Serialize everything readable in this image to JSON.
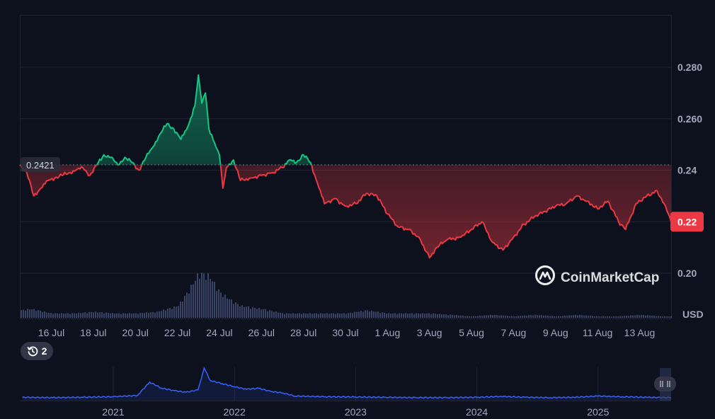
{
  "chart_data": {
    "type": "line",
    "currency_label": "USD",
    "reference_price": 0.2421,
    "reference_label": "0.2421",
    "current_price_label": "0.22",
    "ylim": [
      0.192,
      0.292
    ],
    "y_ticks": [
      {
        "value": 0.28,
        "label": "0.280"
      },
      {
        "value": 0.26,
        "label": "0.260"
      },
      {
        "value": 0.24,
        "label": "0.24"
      },
      {
        "value": 0.22,
        "label": "0.22"
      },
      {
        "value": 0.2,
        "label": "0.20"
      }
    ],
    "x_range": [
      "2025-07-14T12:00",
      "2025-08-14T12:00"
    ],
    "x_ticks": [
      {
        "date": "2025-07-16",
        "label": "16 Jul"
      },
      {
        "date": "2025-07-18",
        "label": "18 Jul"
      },
      {
        "date": "2025-07-20",
        "label": "20 Jul"
      },
      {
        "date": "2025-07-22",
        "label": "22 Jul"
      },
      {
        "date": "2025-07-24",
        "label": "24 Jul"
      },
      {
        "date": "2025-07-26",
        "label": "26 Jul"
      },
      {
        "date": "2025-07-28",
        "label": "28 Jul"
      },
      {
        "date": "2025-07-30",
        "label": "30 Jul"
      },
      {
        "date": "2025-08-01",
        "label": "1 Aug"
      },
      {
        "date": "2025-08-03",
        "label": "3 Aug"
      },
      {
        "date": "2025-08-05",
        "label": "5 Aug"
      },
      {
        "date": "2025-08-07",
        "label": "7 Aug"
      },
      {
        "date": "2025-08-09",
        "label": "9 Aug"
      },
      {
        "date": "2025-08-11",
        "label": "11 Aug"
      },
      {
        "date": "2025-08-13",
        "label": "13 Aug"
      }
    ],
    "price_series": {
      "name": "",
      "points": [
        [
          "2025-07-14T12:00",
          0.2421
        ],
        [
          "2025-07-14T20:00",
          0.239
        ],
        [
          "2025-07-15T04:00",
          0.23
        ],
        [
          "2025-07-15T12:00",
          0.233
        ],
        [
          "2025-07-15T20:00",
          0.236
        ],
        [
          "2025-07-16T04:00",
          0.237
        ],
        [
          "2025-07-16T12:00",
          0.238
        ],
        [
          "2025-07-16T20:00",
          0.239
        ],
        [
          "2025-07-17T04:00",
          0.24
        ],
        [
          "2025-07-17T12:00",
          0.241
        ],
        [
          "2025-07-17T20:00",
          0.238
        ],
        [
          "2025-07-18T04:00",
          0.242
        ],
        [
          "2025-07-18T12:00",
          0.246
        ],
        [
          "2025-07-18T20:00",
          0.245
        ],
        [
          "2025-07-19T04:00",
          0.242
        ],
        [
          "2025-07-19T12:00",
          0.245
        ],
        [
          "2025-07-19T20:00",
          0.243
        ],
        [
          "2025-07-20T04:00",
          0.24
        ],
        [
          "2025-07-20T12:00",
          0.245
        ],
        [
          "2025-07-20T20:00",
          0.249
        ],
        [
          "2025-07-21T04:00",
          0.254
        ],
        [
          "2025-07-21T12:00",
          0.258
        ],
        [
          "2025-07-21T20:00",
          0.256
        ],
        [
          "2025-07-22T04:00",
          0.252
        ],
        [
          "2025-07-22T12:00",
          0.257
        ],
        [
          "2025-07-22T20:00",
          0.265
        ],
        [
          "2025-07-23T00:00",
          0.277
        ],
        [
          "2025-07-23T04:00",
          0.266
        ],
        [
          "2025-07-23T08:00",
          0.27
        ],
        [
          "2025-07-23T12:00",
          0.256
        ],
        [
          "2025-07-23T20:00",
          0.249
        ],
        [
          "2025-07-24T00:00",
          0.246
        ],
        [
          "2025-07-24T04:00",
          0.233
        ],
        [
          "2025-07-24T08:00",
          0.241
        ],
        [
          "2025-07-24T16:00",
          0.244
        ],
        [
          "2025-07-25T00:00",
          0.236
        ],
        [
          "2025-07-25T12:00",
          0.237
        ],
        [
          "2025-07-26T00:00",
          0.238
        ],
        [
          "2025-07-26T12:00",
          0.239
        ],
        [
          "2025-07-27T00:00",
          0.241
        ],
        [
          "2025-07-27T08:00",
          0.244
        ],
        [
          "2025-07-27T16:00",
          0.243
        ],
        [
          "2025-07-28T00:00",
          0.246
        ],
        [
          "2025-07-28T08:00",
          0.243
        ],
        [
          "2025-07-28T16:00",
          0.235
        ],
        [
          "2025-07-29T00:00",
          0.227
        ],
        [
          "2025-07-29T12:00",
          0.229
        ],
        [
          "2025-07-30T00:00",
          0.226
        ],
        [
          "2025-07-30T12:00",
          0.227
        ],
        [
          "2025-07-31T00:00",
          0.231
        ],
        [
          "2025-07-31T12:00",
          0.23
        ],
        [
          "2025-08-01T00:00",
          0.223
        ],
        [
          "2025-08-01T12:00",
          0.218
        ],
        [
          "2025-08-02T00:00",
          0.217
        ],
        [
          "2025-08-02T12:00",
          0.214
        ],
        [
          "2025-08-03T00:00",
          0.206
        ],
        [
          "2025-08-03T08:00",
          0.21
        ],
        [
          "2025-08-03T20:00",
          0.213
        ],
        [
          "2025-08-04T12:00",
          0.214
        ],
        [
          "2025-08-05T00:00",
          0.217
        ],
        [
          "2025-08-05T12:00",
          0.22
        ],
        [
          "2025-08-06T00:00",
          0.212
        ],
        [
          "2025-08-06T12:00",
          0.209
        ],
        [
          "2025-08-07T00:00",
          0.214
        ],
        [
          "2025-08-07T12:00",
          0.219
        ],
        [
          "2025-08-08T00:00",
          0.222
        ],
        [
          "2025-08-08T12:00",
          0.224
        ],
        [
          "2025-08-09T00:00",
          0.226
        ],
        [
          "2025-08-09T12:00",
          0.227
        ],
        [
          "2025-08-10T00:00",
          0.23
        ],
        [
          "2025-08-10T12:00",
          0.228
        ],
        [
          "2025-08-11T00:00",
          0.225
        ],
        [
          "2025-08-11T12:00",
          0.228
        ],
        [
          "2025-08-12T00:00",
          0.22
        ],
        [
          "2025-08-12T08:00",
          0.217
        ],
        [
          "2025-08-12T20:00",
          0.227
        ],
        [
          "2025-08-13T08:00",
          0.23
        ],
        [
          "2025-08-13T20:00",
          0.232
        ],
        [
          "2025-08-14T04:00",
          0.227
        ],
        [
          "2025-08-14T12:00",
          0.22
        ]
      ]
    },
    "volume_series": {
      "name": "",
      "points": [
        [
          "2025-07-14T12:00",
          5
        ],
        [
          "2025-07-15T00:00",
          6
        ],
        [
          "2025-07-16T00:00",
          3
        ],
        [
          "2025-07-17T00:00",
          3
        ],
        [
          "2025-07-18T00:00",
          4
        ],
        [
          "2025-07-19T00:00",
          3
        ],
        [
          "2025-07-20T00:00",
          3
        ],
        [
          "2025-07-21T00:00",
          4
        ],
        [
          "2025-07-22T00:00",
          8
        ],
        [
          "2025-07-22T12:00",
          18
        ],
        [
          "2025-07-23T00:00",
          30
        ],
        [
          "2025-07-23T12:00",
          28
        ],
        [
          "2025-07-24T00:00",
          17
        ],
        [
          "2025-07-24T12:00",
          12
        ],
        [
          "2025-07-25T00:00",
          8
        ],
        [
          "2025-07-26T00:00",
          6
        ],
        [
          "2025-07-27T00:00",
          3
        ],
        [
          "2025-07-28T00:00",
          3
        ],
        [
          "2025-07-29T00:00",
          3
        ],
        [
          "2025-07-30T00:00",
          3
        ],
        [
          "2025-07-31T00:00",
          5
        ],
        [
          "2025-08-01T00:00",
          3
        ],
        [
          "2025-08-02T00:00",
          3
        ],
        [
          "2025-08-03T00:00",
          3
        ],
        [
          "2025-08-04T00:00",
          2
        ],
        [
          "2025-08-05T00:00",
          1
        ],
        [
          "2025-08-06T00:00",
          2
        ],
        [
          "2025-08-07T00:00",
          1
        ],
        [
          "2025-08-08T00:00",
          2
        ],
        [
          "2025-08-09T00:00",
          1
        ],
        [
          "2025-08-10T00:00",
          2
        ],
        [
          "2025-08-11T00:00",
          1
        ],
        [
          "2025-08-12T00:00",
          1
        ],
        [
          "2025-08-13T00:00",
          2
        ],
        [
          "2025-08-14T00:00",
          1
        ],
        [
          "2025-08-14T12:00",
          1
        ]
      ]
    },
    "navigator": {
      "x_ticks": [
        {
          "year": 2021,
          "label": "2021"
        },
        {
          "year": 2022,
          "label": "2022"
        },
        {
          "year": 2023,
          "label": "2023"
        },
        {
          "year": 2024,
          "label": "2024"
        },
        {
          "year": 2025,
          "label": "2025"
        }
      ],
      "series": {
        "name": "",
        "points": [
          [
            2020.25,
            0.06
          ],
          [
            2020.5,
            0.05
          ],
          [
            2020.75,
            0.06
          ],
          [
            2021.0,
            0.08
          ],
          [
            2021.2,
            0.12
          ],
          [
            2021.3,
            0.55
          ],
          [
            2021.4,
            0.35
          ],
          [
            2021.5,
            0.28
          ],
          [
            2021.6,
            0.22
          ],
          [
            2021.7,
            0.3
          ],
          [
            2021.75,
            1.0
          ],
          [
            2021.8,
            0.6
          ],
          [
            2021.9,
            0.5
          ],
          [
            2022.0,
            0.4
          ],
          [
            2022.1,
            0.32
          ],
          [
            2022.2,
            0.35
          ],
          [
            2022.3,
            0.25
          ],
          [
            2022.4,
            0.2
          ],
          [
            2022.5,
            0.1
          ],
          [
            2022.75,
            0.08
          ],
          [
            2023.0,
            0.07
          ],
          [
            2023.25,
            0.06
          ],
          [
            2023.5,
            0.05
          ],
          [
            2023.75,
            0.05
          ],
          [
            2024.0,
            0.06
          ],
          [
            2024.2,
            0.09
          ],
          [
            2024.4,
            0.06
          ],
          [
            2024.6,
            0.05
          ],
          [
            2024.8,
            0.06
          ],
          [
            2025.0,
            0.1
          ],
          [
            2025.2,
            0.08
          ],
          [
            2025.4,
            0.06
          ],
          [
            2025.6,
            0.05
          ]
        ]
      },
      "window_handles": [
        "left-handle",
        "right-handle"
      ]
    }
  },
  "watermark": {
    "brand": "CoinMarketCap"
  },
  "history_badge": {
    "count": "2"
  },
  "colors": {
    "background": "#0c111d",
    "up": "#16c784",
    "down": "#ea3943",
    "grid": "#222531",
    "volume": "#3a4466",
    "navigator_line": "#3861fb",
    "label_bg": "#323546"
  }
}
